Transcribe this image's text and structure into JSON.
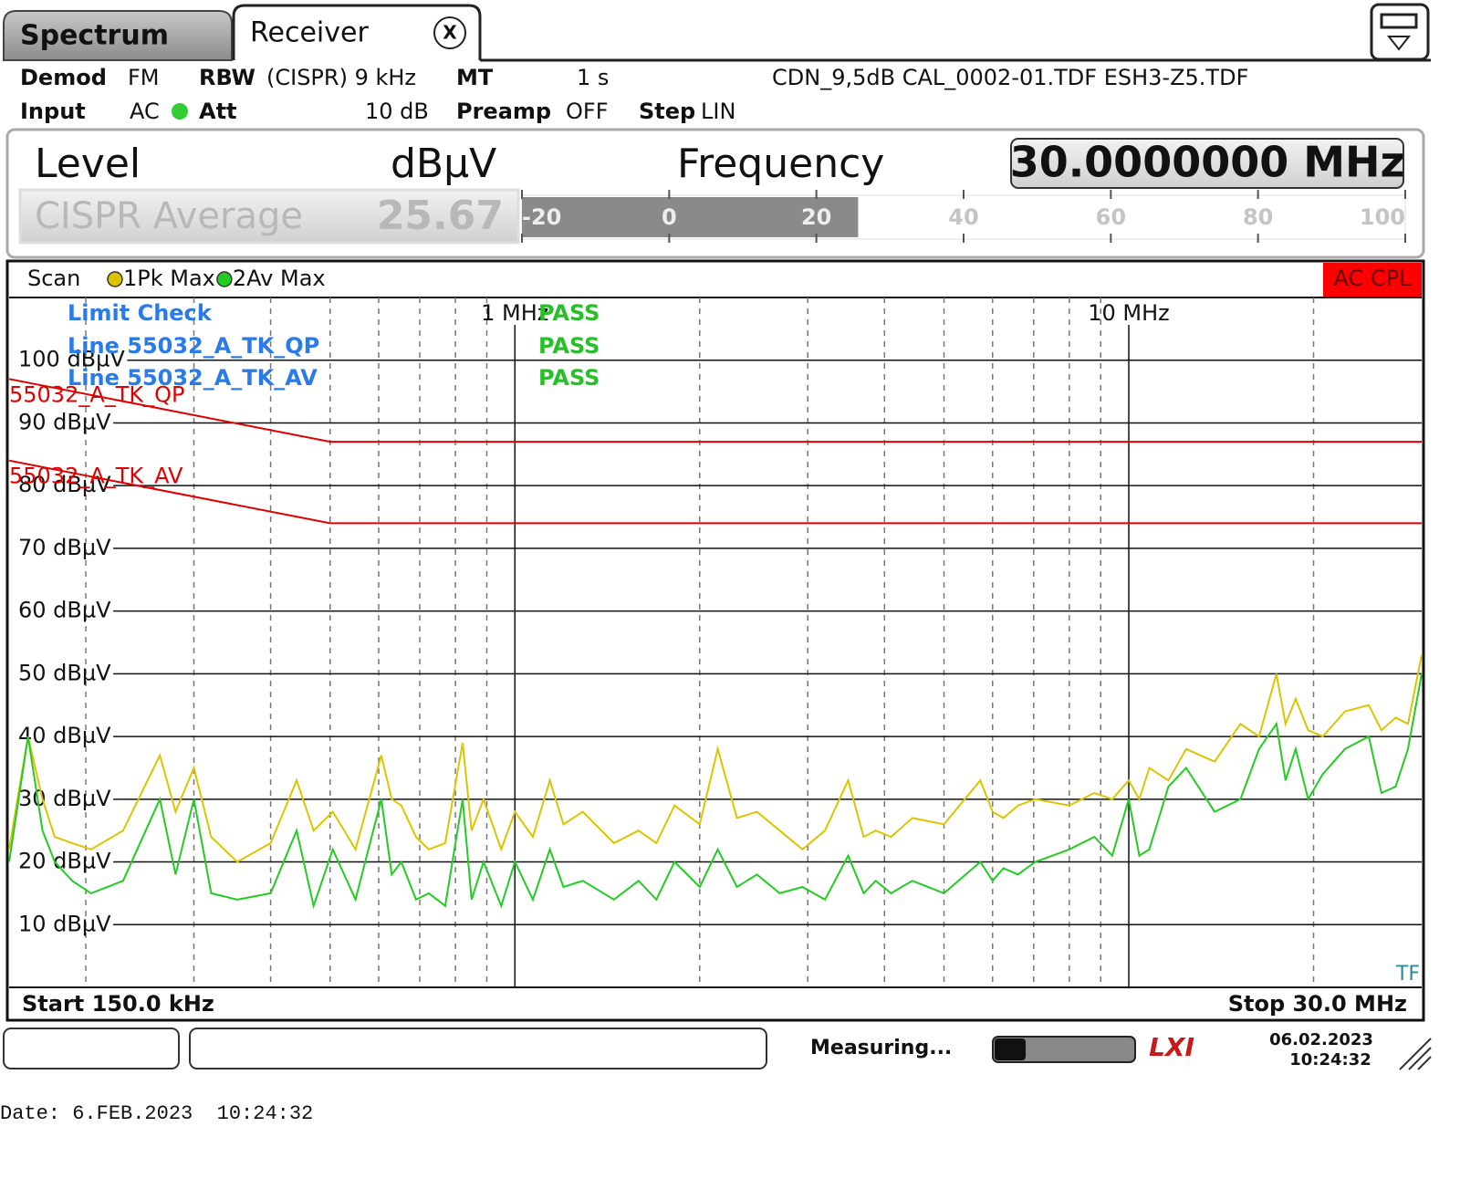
{
  "tabs": {
    "spectrum": "Spectrum",
    "receiver": "Receiver",
    "close": "X"
  },
  "settings": {
    "demod_label": "Demod",
    "demod": "FM",
    "rbw_label": "RBW",
    "rbw": "(CISPR) 9 kHz",
    "mt_label": "MT",
    "mt": "1 s",
    "transducers": "CDN_9,5dB CAL_0002-01.TDF ESH3-Z5.TDF",
    "input_label": "Input",
    "input": "AC",
    "att_label": "Att",
    "att": "10 dB",
    "preamp_label": "Preamp",
    "preamp": "OFF",
    "step_label": "Step",
    "step": "LIN"
  },
  "level_panel": {
    "level_label": "Level",
    "unit": "dBµV",
    "frequency_label": "Frequency",
    "frequency": "30.0000000 MHz",
    "detector": "CISPR Average",
    "value": 25.67,
    "xlim": [
      -20,
      100
    ],
    "xticks": [
      -20,
      0,
      20,
      40,
      60,
      80,
      100
    ]
  },
  "plot_header": {
    "scan": "Scan",
    "coupling": "AC CPL"
  },
  "limit_check": {
    "title": "Limit Check",
    "result": "PASS",
    "lines": [
      {
        "name": "Line 55032_A_TK_QP",
        "result": "PASS"
      },
      {
        "name": "Line 55032_A_TK_AV",
        "result": "PASS"
      }
    ]
  },
  "chart_data": {
    "type": "line",
    "xscale": "log",
    "x": [
      0.15,
      0.161,
      0.17,
      0.178,
      0.19,
      0.204,
      0.23,
      0.264,
      0.28,
      0.3,
      0.32,
      0.353,
      0.4,
      0.441,
      0.47,
      0.505,
      0.55,
      0.606,
      0.63,
      0.653,
      0.69,
      0.724,
      0.77,
      0.822,
      0.85,
      0.889,
      0.95,
      1.0,
      1.07,
      1.14,
      1.2,
      1.29,
      1.45,
      1.59,
      1.7,
      1.82,
      2.0,
      2.14,
      2.3,
      2.48,
      2.7,
      2.94,
      3.2,
      3.49,
      3.7,
      3.87,
      4.1,
      4.44,
      5.0,
      5.73,
      6.0,
      6.25,
      6.6,
      7.04,
      8.0,
      8.79,
      9.4,
      10.0,
      10.4,
      10.8,
      11.6,
      12.4,
      13.8,
      15.2,
      16.3,
      17.4,
      18.0,
      18.7,
      19.6,
      20.7,
      22.5,
      24.6,
      25.8,
      27.2,
      28.5,
      30
    ],
    "series": [
      {
        "name": "1Pk Max",
        "color": "#dcc400",
        "values": [
          22,
          40,
          30,
          24,
          23,
          22,
          25,
          37,
          28,
          35,
          24,
          20,
          23,
          33,
          25,
          28,
          22,
          37,
          30,
          29,
          24,
          22,
          23,
          39,
          25,
          30,
          22,
          28,
          24,
          33,
          26,
          28,
          23,
          25,
          23,
          29,
          26,
          38,
          27,
          28,
          25,
          22,
          25,
          33,
          24,
          25,
          24,
          27,
          26,
          33,
          28,
          27,
          29,
          30,
          29,
          31,
          30,
          33,
          30,
          35,
          33,
          38,
          36,
          42,
          40,
          50,
          42,
          46,
          41,
          40,
          44,
          45,
          41,
          43,
          42,
          53
        ]
      },
      {
        "name": "2Av Max",
        "color": "#22cc22",
        "values": [
          20,
          40,
          25,
          20,
          17,
          15,
          17,
          30,
          18,
          30,
          15,
          14,
          15,
          25,
          13,
          22,
          14,
          30,
          18,
          20,
          14,
          15,
          13,
          30,
          14,
          20,
          13,
          20,
          14,
          22,
          16,
          17,
          14,
          17,
          14,
          20,
          16,
          22,
          16,
          18,
          15,
          16,
          14,
          21,
          15,
          17,
          15,
          17,
          15,
          20,
          17,
          19,
          18,
          20,
          22,
          24,
          21,
          30,
          21,
          22,
          32,
          35,
          28,
          30,
          38,
          42,
          33,
          38,
          30,
          34,
          38,
          40,
          31,
          32,
          38,
          50
        ]
      }
    ],
    "limit_lines": [
      {
        "name": "55032_A_TK_QP",
        "color": "#e00000",
        "x": [
          0.15,
          0.5,
          30
        ],
        "values": [
          97,
          87,
          87
        ]
      },
      {
        "name": "55032_A_TK_AV",
        "color": "#e00000",
        "x": [
          0.15,
          0.5,
          30
        ],
        "values": [
          84,
          74,
          74
        ]
      }
    ],
    "xlim": [
      0.15,
      30
    ],
    "xticks": [
      {
        "value": 1,
        "label": "1 MHz"
      },
      {
        "value": 10,
        "label": "10 MHz"
      }
    ],
    "xgrid_minor": [
      0.2,
      0.3,
      0.4,
      0.5,
      0.6,
      0.7,
      0.8,
      0.9,
      2,
      3,
      4,
      5,
      6,
      7,
      8,
      9,
      20
    ],
    "ylim": [
      0,
      110
    ],
    "yticks": [
      {
        "value": 10,
        "label": "10 dBµV"
      },
      {
        "value": 20,
        "label": "20 dBµV"
      },
      {
        "value": 30,
        "label": "30 dBµV"
      },
      {
        "value": 40,
        "label": "40 dBµV"
      },
      {
        "value": 50,
        "label": "50 dBµV"
      },
      {
        "value": 60,
        "label": "60 dBµV"
      },
      {
        "value": 70,
        "label": "70 dBµV"
      },
      {
        "value": 80,
        "label": "80 dBµV"
      },
      {
        "value": 90,
        "label": "90 dBµV"
      },
      {
        "value": 100,
        "label": "100 dBµV"
      }
    ],
    "grid": true,
    "transducer_flag": "TF",
    "start": "Start 150.0 kHz",
    "stop": "Stop 30.0 MHz"
  },
  "status_bar": {
    "message": "Measuring...",
    "logo": "LXI",
    "date": "06.02.2023",
    "time": "10:24:32"
  },
  "footer": "Date: 6.FEB.2023  10:24:32"
}
